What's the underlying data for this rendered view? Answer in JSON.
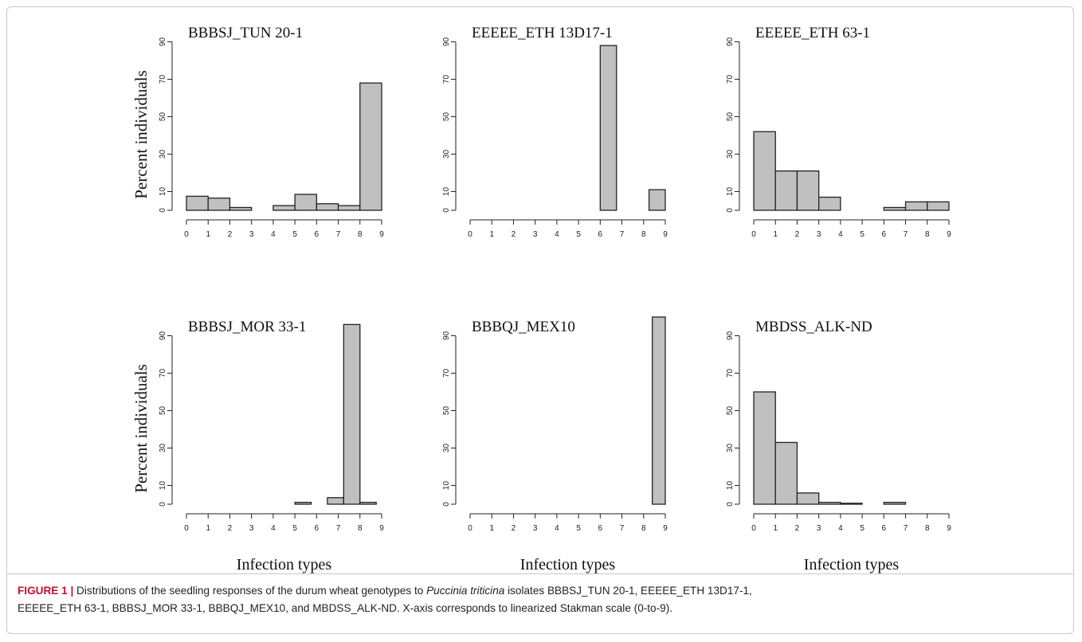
{
  "chart_data": [
    {
      "type": "bar",
      "title": "BBBSJ_TUN 20-1",
      "ylabel": "Percent individuals",
      "xlabel": "",
      "x_bin_edges": [
        0,
        1,
        2,
        3,
        4,
        5,
        6,
        7,
        8,
        9
      ],
      "values": [
        7.5,
        6.5,
        1.5,
        0,
        2.5,
        8.5,
        3.5,
        2.5,
        68
      ],
      "ylim": [
        0,
        100
      ],
      "yticks": [
        0,
        10,
        30,
        50,
        70,
        90
      ],
      "xticks": [
        0,
        1,
        2,
        3,
        4,
        5,
        6,
        7,
        8,
        9
      ],
      "bar_color": "#c0c0c0"
    },
    {
      "type": "bar",
      "title": "EEEEE_ETH 13D17-1",
      "ylabel": "",
      "xlabel": "",
      "x_bin_edges": [
        0,
        1,
        2,
        3,
        4,
        5,
        6,
        6.75,
        7.5,
        8.25,
        9
      ],
      "values": [
        0,
        0,
        0,
        0,
        0,
        0,
        88,
        0,
        0,
        11
      ],
      "ylim": [
        0,
        100
      ],
      "yticks": [
        0,
        10,
        30,
        50,
        70,
        90
      ],
      "xticks": [
        0,
        1,
        2,
        3,
        4,
        5,
        6,
        7,
        8,
        9
      ],
      "bar_color": "#c0c0c0"
    },
    {
      "type": "bar",
      "title": "EEEEE_ETH 63-1",
      "ylabel": "",
      "xlabel": "",
      "x_bin_edges": [
        0,
        1,
        2,
        3,
        4,
        5,
        6,
        7,
        8,
        9
      ],
      "values": [
        42,
        21,
        21,
        7,
        0,
        0,
        1.5,
        4.5,
        4.5
      ],
      "ylim": [
        0,
        100
      ],
      "yticks": [
        0,
        10,
        30,
        50,
        70,
        90
      ],
      "xticks": [
        0,
        1,
        2,
        3,
        4,
        5,
        6,
        7,
        8,
        9
      ],
      "bar_color": "#c0c0c0"
    },
    {
      "type": "bar",
      "title": "BBBSJ_MOR 33-1",
      "ylabel": "Percent individuals",
      "xlabel": "Infection types",
      "x_bin_edges": [
        5,
        5.75,
        6.5,
        7.25,
        8,
        8.75
      ],
      "values": [
        1,
        0,
        3.5,
        96,
        1
      ],
      "ylim": [
        0,
        100
      ],
      "yticks": [
        0,
        10,
        30,
        50,
        70,
        90
      ],
      "xticks": [
        0,
        1,
        2,
        3,
        4,
        5,
        6,
        7,
        8,
        9
      ],
      "bar_color": "#c0c0c0"
    },
    {
      "type": "bar",
      "title": "BBBQJ_MEX10",
      "ylabel": "",
      "xlabel": "Infection types",
      "x_bin_edges": [
        8.4,
        9
      ],
      "values": [
        100
      ],
      "ylim": [
        0,
        100
      ],
      "yticks": [
        0,
        10,
        30,
        50,
        70,
        90
      ],
      "xticks": [
        0,
        1,
        2,
        3,
        4,
        5,
        6,
        7,
        8,
        9
      ],
      "bar_color": "#c0c0c0"
    },
    {
      "type": "bar",
      "title": "MBDSS_ALK-ND",
      "ylabel": "",
      "xlabel": "Infection types",
      "x_bin_edges": [
        0,
        1,
        2,
        3,
        4,
        5,
        6,
        7
      ],
      "values": [
        60,
        33,
        6,
        1,
        0.5,
        0,
        1
      ],
      "ylim": [
        0,
        100
      ],
      "yticks": [
        0,
        10,
        30,
        50,
        70,
        90
      ],
      "xticks": [
        0,
        1,
        2,
        3,
        4,
        5,
        6,
        7,
        8,
        9
      ],
      "bar_color": "#c0c0c0"
    }
  ],
  "caption": {
    "label": "FIGURE 1 |",
    "text_before_species": " Distributions of the seedling responses of the durum wheat genotypes to ",
    "species": "Puccinia triticina",
    "text_line1_rest": " isolates BBBSJ_TUN 20-1, EEEEE_ETH 13D17-1,",
    "line2": "EEEEE_ETH 63-1, BBBSJ_MOR 33-1, BBBQJ_MEX10, and MBDSS_ALK-ND. X-axis corresponds to linearized Stakman scale (0-to-9)."
  }
}
